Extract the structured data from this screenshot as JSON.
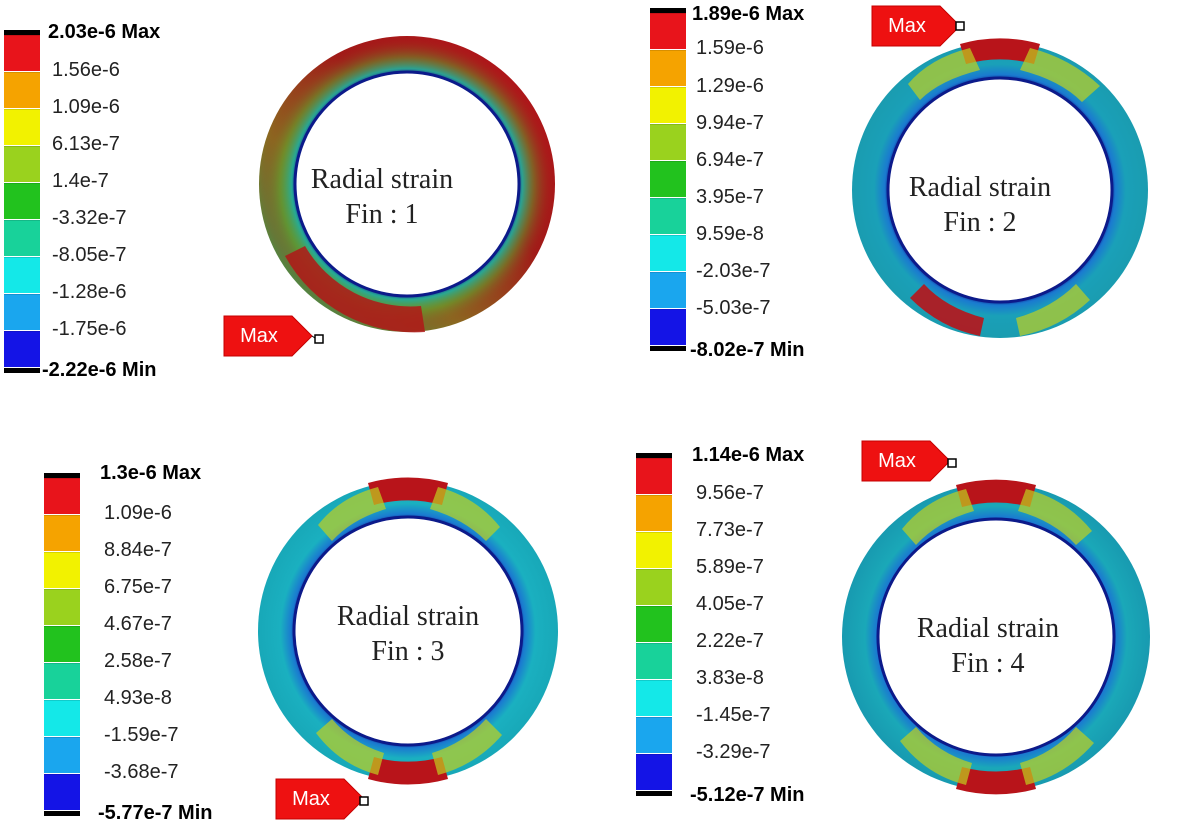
{
  "legend_suffix_max": "Max",
  "legend_suffix_min": "Min",
  "panels": [
    {
      "caption_line1": "Radial strain",
      "caption_line2": "Fin : 1",
      "max_tag": "Max",
      "labels": [
        "2.03e-6 Max",
        "1.56e-6",
        "1.09e-6",
        "6.13e-7",
        "1.4e-7",
        "-3.32e-7",
        "-8.05e-7",
        "-1.28e-6",
        "-1.75e-6",
        "-2.22e-6 Min"
      ]
    },
    {
      "caption_line1": "Radial strain",
      "caption_line2": "Fin : 2",
      "max_tag": "Max",
      "labels": [
        "1.89e-6 Max",
        "1.59e-6",
        "1.29e-6",
        "9.94e-7",
        "6.94e-7",
        "3.95e-7",
        "9.59e-8",
        "-2.03e-7",
        "-5.03e-7",
        "-8.02e-7 Min"
      ]
    },
    {
      "caption_line1": "Radial strain",
      "caption_line2": "Fin : 3",
      "max_tag": "Max",
      "labels": [
        "1.3e-6 Max",
        "1.09e-6",
        "8.84e-7",
        "6.75e-7",
        "4.67e-7",
        "2.58e-7",
        "4.93e-8",
        "-1.59e-7",
        "-3.68e-7",
        "-5.77e-7 Min"
      ]
    },
    {
      "caption_line1": "Radial strain",
      "caption_line2": "Fin : 4",
      "max_tag": "Max",
      "labels": [
        "1.14e-6 Max",
        "9.56e-7",
        "7.73e-7",
        "5.89e-7",
        "4.05e-7",
        "2.22e-7",
        "3.83e-8",
        "-1.45e-7",
        "-3.29e-7",
        "-5.12e-7 Min"
      ]
    }
  ],
  "colors": {
    "bands": [
      "#e8141b",
      "#f5a300",
      "#f2f200",
      "#9ad21e",
      "#22c21e",
      "#18d29a",
      "#14e8e8",
      "#1aa6ee",
      "#1414e6"
    ],
    "max_tag": "#ee1111",
    "ring_base_fin1": "#1e9a74",
    "ring_base_other": "#1a9cb0",
    "ring_hot": "#b8141a",
    "inner_edge": "#0c1a8a"
  }
}
